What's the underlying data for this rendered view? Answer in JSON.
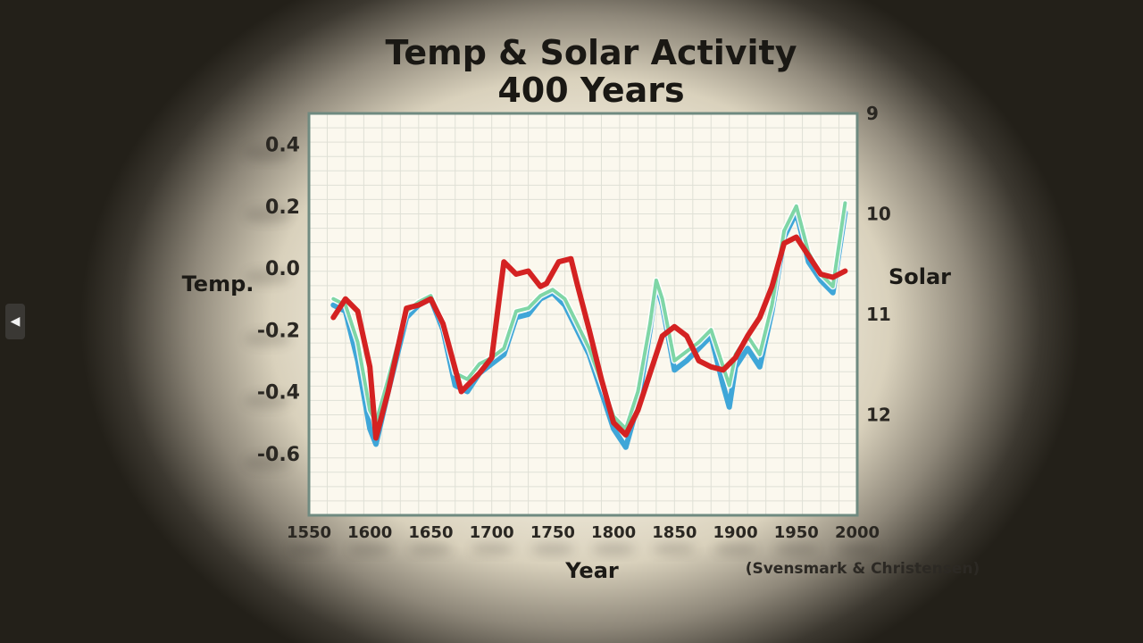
{
  "nav": {
    "prev_icon": "◀"
  },
  "chart_data": {
    "type": "line",
    "title": "Temp & Solar Activity",
    "subtitle": "400 Years",
    "xlabel": "Year",
    "ylabel_left": "Temp.",
    "ylabel_right": "Solar",
    "source_note": "(Svensmark & Christensen)",
    "xlim": [
      1550,
      2000
    ],
    "ylim_left": [
      -0.8,
      0.5
    ],
    "ylim_right_reversed": [
      9,
      13
    ],
    "x_ticks": [
      "1550",
      "1600",
      "1650",
      "1700",
      "1750",
      "1800",
      "1850",
      "1900",
      "1950",
      "2000"
    ],
    "y_ticks_left": [
      "0.4",
      "0.2",
      "0.0",
      "-0.2",
      "-0.4",
      "-0.6"
    ],
    "y_ticks_right": [
      "9",
      "10",
      "11",
      "12"
    ],
    "y_ticks_left_values": [
      0.4,
      0.2,
      0.0,
      -0.2,
      -0.4,
      -0.6
    ],
    "y_ticks_right_values": [
      9,
      10,
      11,
      12
    ],
    "grid": true,
    "colors": {
      "red": "#d42222",
      "blue": "#3fa6d8",
      "green": "#7fd6a6",
      "frame": "#6f8a80",
      "grid": "#dfe0d6",
      "plot_bg": "#fbf8ee"
    },
    "series": [
      {
        "color": "red",
        "axis": "left",
        "width": 6,
        "x": [
          1570,
          1580,
          1590,
          1600,
          1605,
          1615,
          1630,
          1640,
          1650,
          1660,
          1675,
          1690,
          1700,
          1710,
          1720,
          1730,
          1740,
          1745,
          1755,
          1765,
          1770,
          1780,
          1790,
          1800,
          1810,
          1820,
          1830,
          1840,
          1850,
          1860,
          1870,
          1880,
          1890,
          1900,
          1910,
          1920,
          1930,
          1940,
          1950,
          1960,
          1970,
          1980,
          1990
        ],
        "y": [
          -0.16,
          -0.1,
          -0.14,
          -0.32,
          -0.55,
          -0.4,
          -0.13,
          -0.12,
          -0.1,
          -0.18,
          -0.4,
          -0.34,
          -0.29,
          0.02,
          -0.02,
          -0.01,
          -0.06,
          -0.05,
          0.02,
          0.03,
          -0.05,
          -0.2,
          -0.36,
          -0.5,
          -0.54,
          -0.46,
          -0.34,
          -0.22,
          -0.19,
          -0.22,
          -0.3,
          -0.32,
          -0.33,
          -0.29,
          -0.22,
          -0.16,
          -0.06,
          0.08,
          0.1,
          0.04,
          -0.02,
          -0.03,
          -0.01
        ]
      },
      {
        "color": "blue",
        "axis": "left",
        "width": 6,
        "x": [
          1570,
          1580,
          1590,
          1600,
          1605,
          1615,
          1630,
          1640,
          1650,
          1660,
          1670,
          1680,
          1690,
          1700,
          1710,
          1720,
          1730,
          1740,
          1750,
          1760,
          1770,
          1780,
          1790,
          1800,
          1810,
          1820,
          1830,
          1835,
          1840,
          1850,
          1860,
          1870,
          1880,
          1890,
          1895,
          1900,
          1910,
          1920,
          1930,
          1940,
          1950,
          1960,
          1970,
          1980,
          1990
        ],
        "y": [
          -0.12,
          -0.14,
          -0.3,
          -0.52,
          -0.57,
          -0.4,
          -0.16,
          -0.12,
          -0.1,
          -0.2,
          -0.38,
          -0.4,
          -0.34,
          -0.31,
          -0.28,
          -0.16,
          -0.15,
          -0.1,
          -0.08,
          -0.12,
          -0.2,
          -0.28,
          -0.4,
          -0.52,
          -0.58,
          -0.44,
          -0.2,
          -0.05,
          -0.12,
          -0.33,
          -0.3,
          -0.26,
          -0.22,
          -0.38,
          -0.45,
          -0.32,
          -0.26,
          -0.32,
          -0.14,
          0.1,
          0.18,
          0.02,
          -0.04,
          -0.08,
          0.18
        ]
      },
      {
        "color": "green",
        "axis": "left",
        "width": 4,
        "x": [
          1570,
          1580,
          1590,
          1600,
          1605,
          1615,
          1630,
          1640,
          1650,
          1660,
          1670,
          1680,
          1690,
          1700,
          1710,
          1720,
          1730,
          1740,
          1750,
          1760,
          1770,
          1780,
          1790,
          1800,
          1810,
          1820,
          1830,
          1835,
          1840,
          1850,
          1860,
          1870,
          1880,
          1890,
          1895,
          1900,
          1910,
          1920,
          1930,
          1940,
          1950,
          1960,
          1970,
          1980,
          1990
        ],
        "y": [
          -0.1,
          -0.12,
          -0.24,
          -0.46,
          -0.5,
          -0.36,
          -0.14,
          -0.11,
          -0.09,
          -0.18,
          -0.34,
          -0.36,
          -0.31,
          -0.29,
          -0.26,
          -0.14,
          -0.13,
          -0.09,
          -0.07,
          -0.1,
          -0.18,
          -0.26,
          -0.37,
          -0.48,
          -0.52,
          -0.4,
          -0.18,
          -0.04,
          -0.1,
          -0.3,
          -0.27,
          -0.24,
          -0.2,
          -0.32,
          -0.38,
          -0.28,
          -0.22,
          -0.28,
          -0.12,
          0.12,
          0.2,
          0.05,
          -0.02,
          -0.06,
          0.21
        ]
      }
    ]
  }
}
